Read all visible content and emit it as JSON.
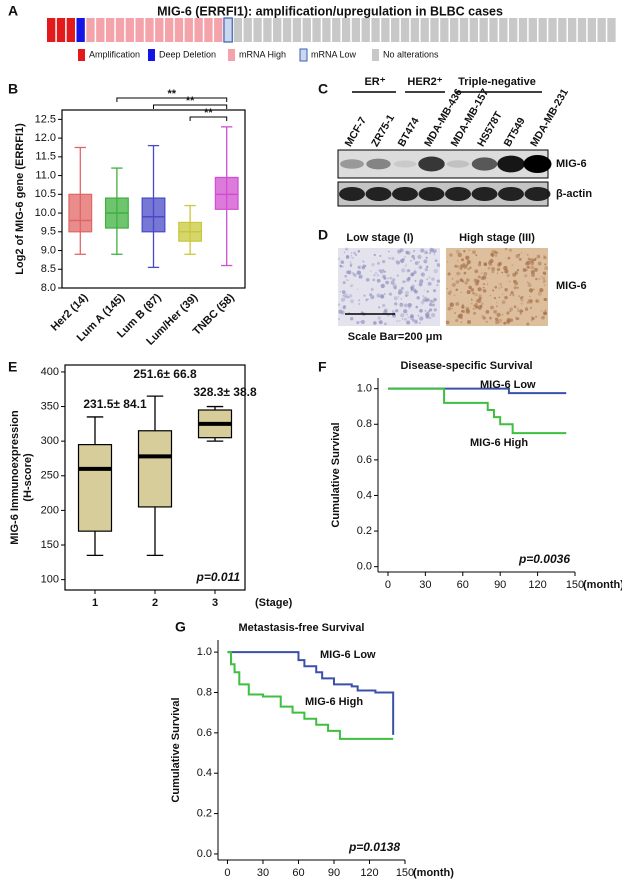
{
  "panel_labels": [
    "A",
    "B",
    "C",
    "D",
    "E",
    "F",
    "G"
  ],
  "oncoprint": {
    "title": "MIG-6 (ERRFI1): amplification/upregulation in BLBC cases",
    "legend": [
      {
        "label": "Amplification",
        "color": "#e31a1c",
        "count": 3
      },
      {
        "label": "Deep Deletion",
        "color": "#1414e6",
        "count": 1
      },
      {
        "label": "mRNA High",
        "color": "#f4a3ab",
        "count": 14
      },
      {
        "label": "mRNA Low",
        "color": "#c9d8ee",
        "count": 1
      },
      {
        "label": "No alterations",
        "color": "#c8c8c8",
        "count": 39
      }
    ]
  },
  "western_blot": {
    "groups": [
      "ER⁺",
      "HER2⁺",
      "Triple-negative"
    ],
    "lanes": [
      "MCF-7",
      "ZR75-1",
      "BT474",
      "MDA-MB-436",
      "MDA-MB-157",
      "HS578T",
      "BT549",
      "MDA-MB-231"
    ],
    "rows": [
      "MIG-6",
      "β-actin"
    ]
  },
  "ihc": {
    "panels": [
      "Low stage (I)",
      "High stage (III)"
    ],
    "label": "MIG-6",
    "scale_bar": "Scale Bar=200 μm"
  },
  "chart_data": [
    {
      "type": "box",
      "ylabel": "Log2 of MIG-6 gene (ERRFI1)",
      "categories": [
        "Her2 (14)",
        "Lum A (145)",
        "Lum B (87)",
        "Lum/Her (39)",
        "TNBC (58)"
      ],
      "colors": [
        "#e06666",
        "#3fb03f",
        "#4a4ac8",
        "#c8c83c",
        "#d04fd0"
      ],
      "boxes": [
        {
          "whisker_low": 8.9,
          "q1": 9.5,
          "median": 9.8,
          "q3": 10.5,
          "whisker_high": 11.75
        },
        {
          "whisker_low": 8.9,
          "q1": 9.6,
          "median": 10.0,
          "q3": 10.4,
          "whisker_high": 11.2
        },
        {
          "whisker_low": 8.55,
          "q1": 9.5,
          "median": 9.9,
          "q3": 10.4,
          "whisker_high": 11.8
        },
        {
          "whisker_low": 8.9,
          "q1": 9.25,
          "median": 9.5,
          "q3": 9.75,
          "whisker_high": 10.2
        },
        {
          "whisker_low": 8.6,
          "q1": 10.1,
          "median": 10.5,
          "q3": 10.95,
          "whisker_high": 12.3
        }
      ],
      "ylim": [
        8,
        12.75
      ],
      "yticks": [
        {
          "value": 8,
          "label": "8.0"
        },
        8.5,
        {
          "value": 9,
          "label": "9.0"
        },
        9.5,
        {
          "value": 10,
          "label": "10.0"
        },
        10.5,
        {
          "value": 11,
          "label": "11.0"
        },
        11.5,
        {
          "value": 12,
          "label": "12.0"
        },
        12.5
      ],
      "significance": [
        "**",
        "**",
        "**"
      ]
    },
    {
      "type": "box",
      "ylabel": [
        "MIG-6 Immunoexpression",
        "(H-score)"
      ],
      "xlabel": "(Stage)",
      "categories": [
        "1",
        "2",
        "3"
      ],
      "color": "#d6cd9b",
      "boxes": [
        {
          "whisker_low": 135,
          "q1": 170,
          "median": 260,
          "q3": 295,
          "whisker_high": 335
        },
        {
          "whisker_low": 135,
          "q1": 205,
          "median": 278,
          "q3": 315,
          "whisker_high": 365
        },
        {
          "whisker_low": 300,
          "q1": 305,
          "median": 325,
          "q3": 345,
          "whisker_high": 350
        }
      ],
      "ylim": [
        85,
        410
      ],
      "yticks": [
        100,
        150,
        200,
        250,
        300,
        350,
        400
      ],
      "annotations": [
        "231.5± 84.1",
        "251.6± 66.8",
        "328.3± 38.8"
      ],
      "p_value": "p=0.011"
    },
    {
      "type": "km",
      "title": "Disease-specific Survival",
      "ylabel": "Cumulative Survival",
      "xlabel": "(month)",
      "xlim": [
        -8,
        150
      ],
      "xticks": [
        0,
        30,
        60,
        90,
        120,
        150
      ],
      "ylim": [
        -0.03,
        1.06
      ],
      "yticks": [
        {
          "value": 0,
          "label": "0.0"
        },
        0.2,
        0.4,
        0.6,
        0.8,
        {
          "value": 1,
          "label": "1.0"
        }
      ],
      "series": [
        {
          "name": "MIG-6 Low",
          "color": "#3b50a8",
          "x": [
            0,
            97,
            143
          ],
          "values": [
            1.0,
            0.975,
            0.975
          ]
        },
        {
          "name": "MIG-6 High",
          "color": "#3fbf3f",
          "x": [
            0,
            45,
            80,
            85,
            90,
            100,
            143
          ],
          "values": [
            1.0,
            0.92,
            0.88,
            0.84,
            0.8,
            0.75,
            0.75
          ]
        }
      ],
      "p_value": "p=0.0036"
    },
    {
      "type": "km",
      "title": "Metastasis-free Survival",
      "ylabel": "Cumulative Survival",
      "xlabel": "(month)",
      "xlim": [
        -8,
        150
      ],
      "xticks": [
        0,
        30,
        60,
        90,
        120,
        150
      ],
      "ylim": [
        -0.03,
        1.06
      ],
      "yticks": [
        {
          "value": 0,
          "label": "0.0"
        },
        0.2,
        0.4,
        0.6,
        0.8,
        {
          "value": 1,
          "label": "1.0"
        }
      ],
      "series": [
        {
          "name": "MIG-6 Low",
          "color": "#3b50a8",
          "x": [
            0,
            60,
            65,
            75,
            80,
            90,
            105,
            110,
            125,
            140
          ],
          "values": [
            1.0,
            0.96,
            0.93,
            0.9,
            0.87,
            0.84,
            0.83,
            0.81,
            0.8,
            0.59
          ]
        },
        {
          "name": "MIG-6 High",
          "color": "#3fbf3f",
          "x": [
            0,
            3,
            6,
            10,
            18,
            30,
            45,
            55,
            65,
            75,
            85,
            95,
            140
          ],
          "values": [
            1.0,
            0.94,
            0.9,
            0.84,
            0.79,
            0.78,
            0.73,
            0.7,
            0.67,
            0.64,
            0.61,
            0.57,
            0.57
          ]
        }
      ],
      "p_value": "p=0.0138"
    }
  ]
}
